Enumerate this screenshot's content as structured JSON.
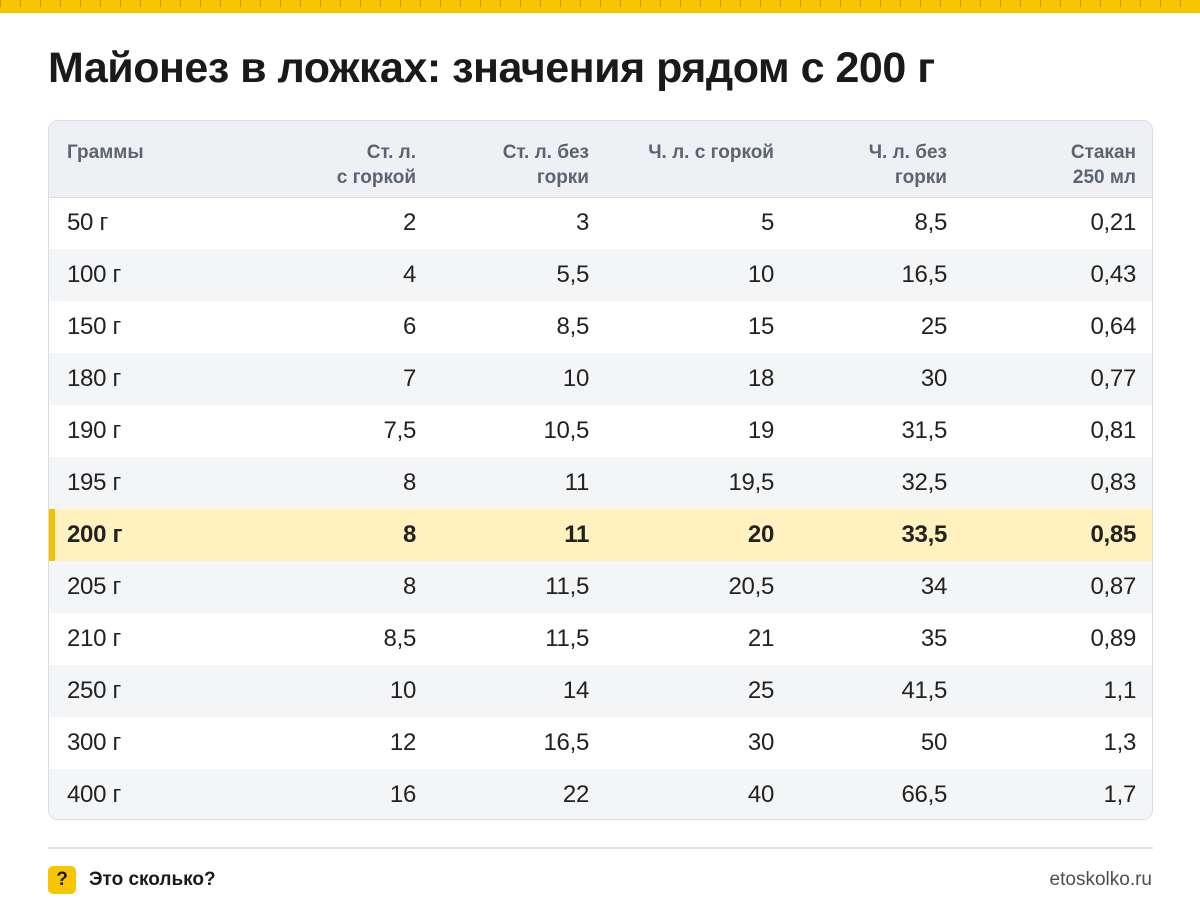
{
  "title": "Майонез в ложках: значения рядом с 200 г",
  "table": {
    "headers": [
      [
        "Граммы",
        ""
      ],
      [
        "Ст. л.",
        "с горкой"
      ],
      [
        "Ст. л. без",
        "горки"
      ],
      [
        "Ч. л. с горкой",
        ""
      ],
      [
        "Ч. л. без",
        "горки"
      ],
      [
        "Стакан",
        "250 мл"
      ]
    ],
    "rows": [
      [
        "50 г",
        "2",
        "3",
        "5",
        "8,5",
        "0,21"
      ],
      [
        "100 г",
        "4",
        "5,5",
        "10",
        "16,5",
        "0,43"
      ],
      [
        "150 г",
        "6",
        "8,5",
        "15",
        "25",
        "0,64"
      ],
      [
        "180 г",
        "7",
        "10",
        "18",
        "30",
        "0,77"
      ],
      [
        "190 г",
        "7,5",
        "10,5",
        "19",
        "31,5",
        "0,81"
      ],
      [
        "195 г",
        "8",
        "11",
        "19,5",
        "32,5",
        "0,83"
      ],
      [
        "200 г",
        "8",
        "11",
        "20",
        "33,5",
        "0,85"
      ],
      [
        "205 г",
        "8",
        "11,5",
        "20,5",
        "34",
        "0,87"
      ],
      [
        "210 г",
        "8,5",
        "11,5",
        "21",
        "35",
        "0,89"
      ],
      [
        "250 г",
        "10",
        "14",
        "25",
        "41,5",
        "1,1"
      ],
      [
        "300 г",
        "12",
        "16,5",
        "30",
        "50",
        "1,3"
      ],
      [
        "400 г",
        "16",
        "22",
        "40",
        "66,5",
        "1,7"
      ]
    ],
    "highlight_row": "200 г"
  },
  "footer": {
    "badge": "?",
    "brand": "Это сколько?",
    "site": "etoskolko.ru"
  },
  "colors": {
    "accent": "#f7c600",
    "highlight_bg": "#fff2bf",
    "header_bg": "#eef0f3"
  }
}
